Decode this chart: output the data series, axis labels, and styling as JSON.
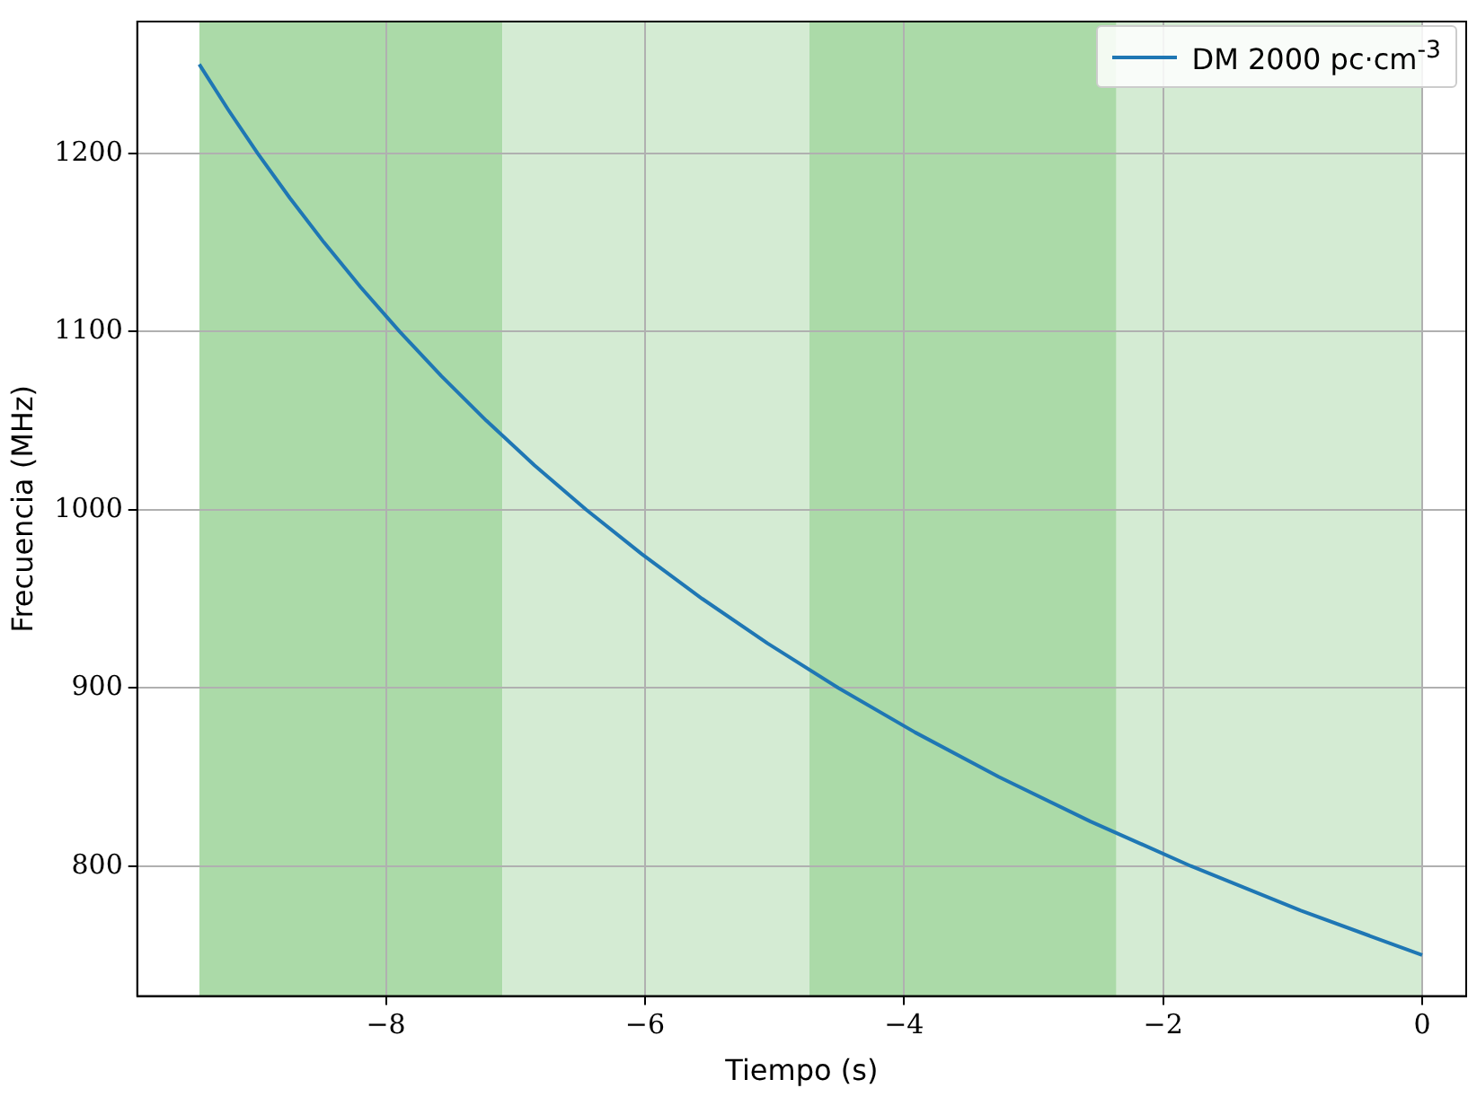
{
  "chart_data": {
    "type": "line",
    "xlabel": "Tiempo (s)",
    "ylabel": "Frecuencia (MHz)",
    "series": [
      {
        "name": "DM 2000 pc·cm$^{-3}$",
        "color": "#1f77b4",
        "x": [
          -9.441,
          -9.222,
          -8.99,
          -8.742,
          -8.478,
          -8.196,
          -7.894,
          -7.572,
          -7.225,
          -6.854,
          -6.454,
          -6.023,
          -5.558,
          -5.054,
          -4.508,
          -3.914,
          -3.267,
          -2.56,
          -1.786,
          -0.936,
          0
        ],
        "values": [
          1250,
          1225,
          1200,
          1175,
          1150,
          1125,
          1100,
          1075,
          1050,
          1025,
          1000,
          975,
          950,
          925,
          900,
          875,
          850,
          825,
          800,
          775,
          750
        ]
      }
    ],
    "xlim": [
      -9.92,
      0.34
    ],
    "ylim": [
      727,
      1274
    ],
    "xticks": [
      -8,
      -6,
      -4,
      -2,
      0
    ],
    "yticks": [
      800,
      900,
      1000,
      1100,
      1200
    ],
    "bands": [
      {
        "axis": "x",
        "from": -9.44,
        "to": -7.1,
        "color": "#abdaa8"
      },
      {
        "axis": "x",
        "from": -7.1,
        "to": -4.73,
        "color": "#d4ebd3"
      },
      {
        "axis": "x",
        "from": -4.73,
        "to": -2.36,
        "color": "#abdaa8"
      },
      {
        "axis": "x",
        "from": -2.36,
        "to": 0,
        "color": "#d4ebd3"
      }
    ],
    "grid": true,
    "legend": "top right",
    "marker": "none",
    "line_style": "solid"
  }
}
